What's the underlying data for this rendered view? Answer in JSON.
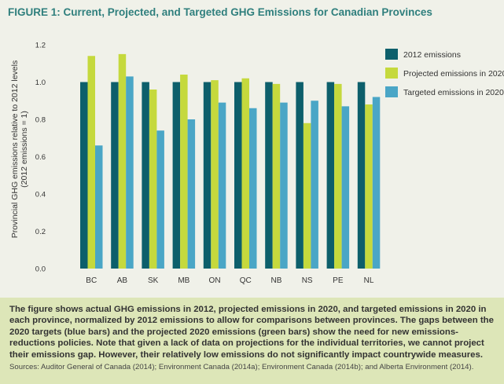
{
  "figure_title": "FIGURE 1: Current, Projected, and Targeted GHG Emissions for Canadian Provinces",
  "caption": {
    "text": "The figure shows actual GHG emissions in 2012, projected emissions in 2020, and targeted emissions in 2020 in each province, normalized by 2012 emissions to allow for comparisons between provinces. The gaps between the 2020 targets (blue bars) and the projected 2020 emissions (green bars) show the need for new emissions-reductions policies. Note that given a lack of data on projections for the individual territories, we cannot project their emissions gap. However, their relatively low emissions do not significantly impact countrywide measures.",
    "sources": "Sources: Auditor General of Canada (2014); Environment Canada (2014a); Environment Canada (2014b); and Alberta Environment (2014)."
  },
  "chart_data": {
    "type": "bar",
    "title": "",
    "ylabel_line1": "Provincial GHG emissions relative to 2012 levels",
    "ylabel_line2": "(2012 emissions = 1)",
    "xlabel": "",
    "ylim": [
      0,
      1.2
    ],
    "yticks": [
      "0.0",
      "0.2",
      "0.4",
      "0.6",
      "0.8",
      "1.0",
      "1.2"
    ],
    "grid": false,
    "legend_position": "right",
    "categories": [
      "BC",
      "AB",
      "SK",
      "MB",
      "ON",
      "QC",
      "NB",
      "NS",
      "PE",
      "NL"
    ],
    "series": [
      {
        "name": "2012 emissions",
        "color": "#0d5f6b",
        "values": [
          1.0,
          1.0,
          1.0,
          1.0,
          1.0,
          1.0,
          1.0,
          1.0,
          1.0,
          1.0
        ]
      },
      {
        "name": "Projected emissions in 2020",
        "color": "#c5d93d",
        "values": [
          1.14,
          1.15,
          0.96,
          1.04,
          1.01,
          1.02,
          0.99,
          0.78,
          0.99,
          0.88
        ]
      },
      {
        "name": "Targeted emissions in 2020",
        "color": "#4aa6c6",
        "values": [
          0.66,
          1.03,
          0.74,
          0.8,
          0.89,
          0.86,
          0.89,
          0.9,
          0.87,
          0.92
        ]
      }
    ]
  }
}
